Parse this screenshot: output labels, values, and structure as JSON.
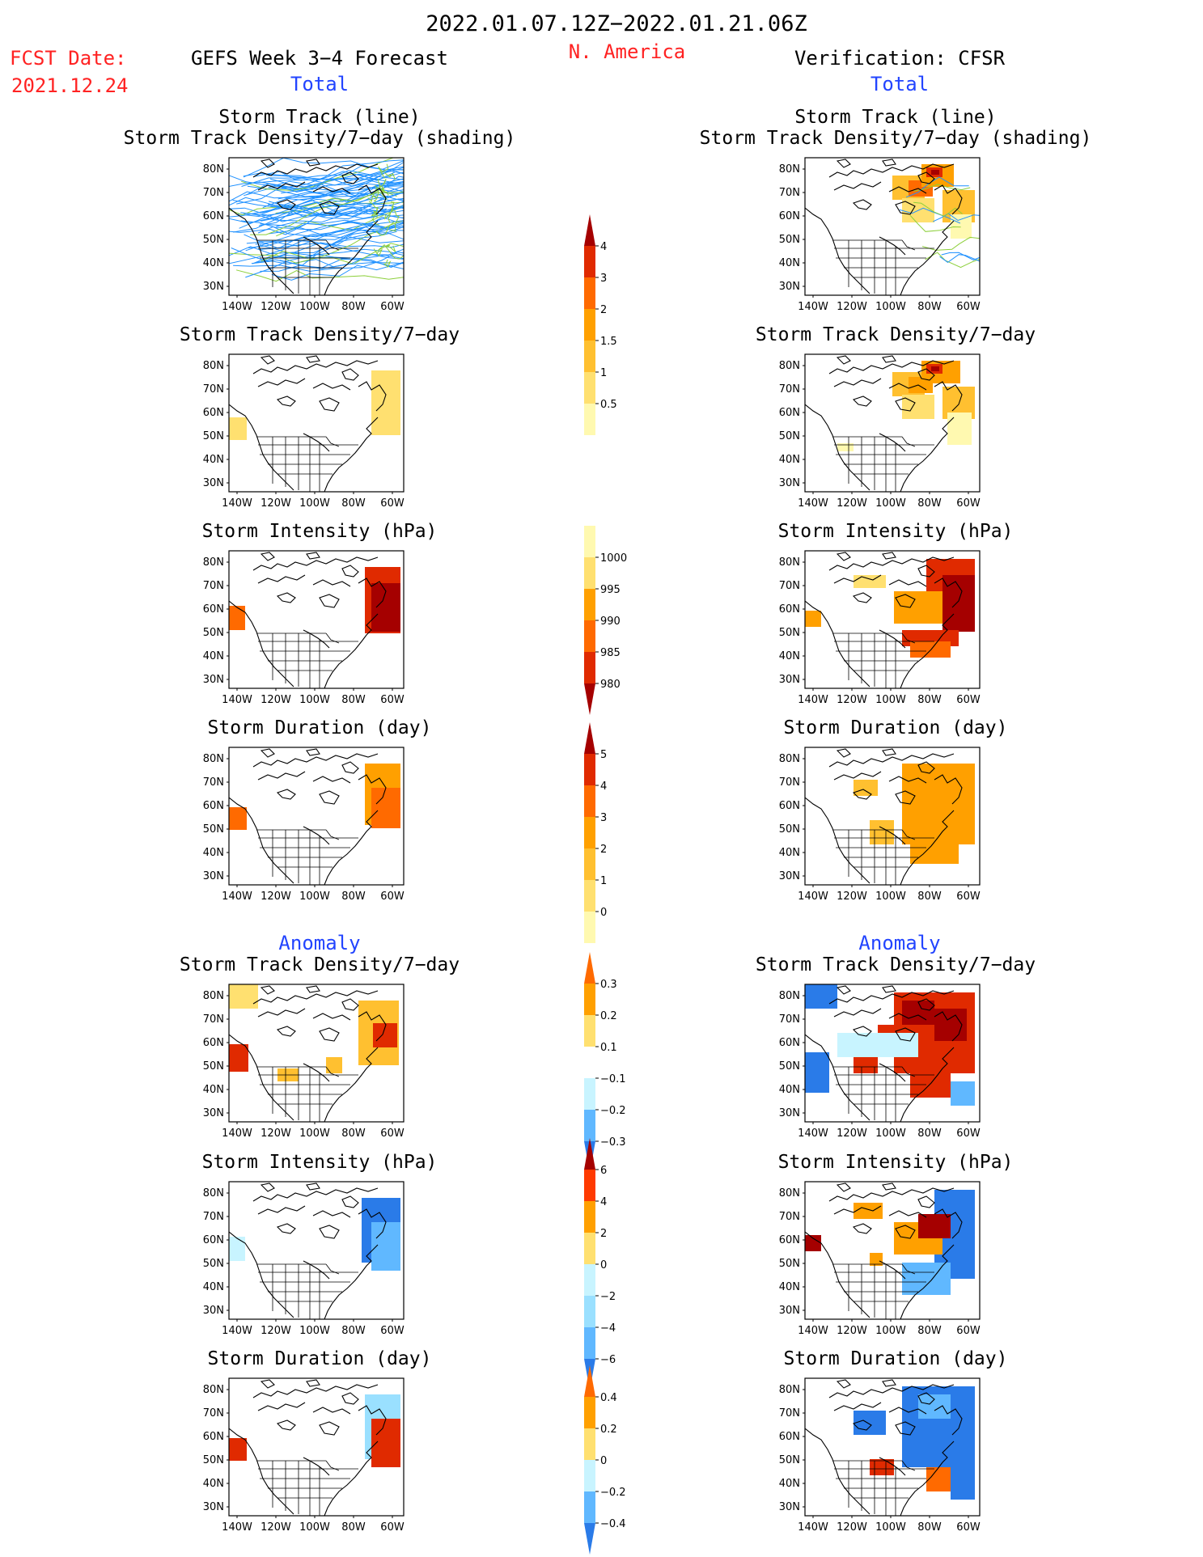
{
  "header": {
    "date_range": "2022.01.07.12Z−2022.01.21.06Z",
    "fcst_label": "FCST Date:",
    "fcst_date": "2021.12.24",
    "left_title": "GEFS Week 3−4 Forecast",
    "region": "N. America",
    "right_title": "Verification: CFSR"
  },
  "sections": {
    "total": "Total",
    "anomaly": "Anomaly"
  },
  "panel_titles": {
    "track_line": "Storm Track (line)",
    "track_shading": "Storm Track Density/7−day (shading)",
    "density": "Storm Track Density/7−day",
    "intensity": "Storm Intensity (hPa)",
    "duration": "Storm Duration (day)"
  },
  "axes": {
    "lat_labels": [
      "80N",
      "70N",
      "60N",
      "50N",
      "40N",
      "30N"
    ],
    "lon_labels": [
      "140W",
      "120W",
      "100W",
      "80W",
      "60W"
    ],
    "lat_range": [
      25,
      85
    ],
    "lon_range": [
      -150,
      -55
    ]
  },
  "colorbars": {
    "density_total": [
      "0.5",
      "1",
      "1.5",
      "2",
      "3",
      "4"
    ],
    "intensity_total": [
      "1000",
      "995",
      "990",
      "985",
      "980"
    ],
    "duration_total": [
      "0",
      "1",
      "2",
      "3",
      "4",
      "5"
    ],
    "density_anom": [
      "0.3",
      "0.2",
      "0.1",
      "−0.1",
      "−0.2",
      "−0.3"
    ],
    "intensity_anom": [
      "6",
      "4",
      "2",
      "0",
      "−2",
      "−4",
      "−6"
    ],
    "duration_anom": [
      "0.4",
      "0.2",
      "0",
      "−0.2",
      "−0.4"
    ]
  },
  "colors": {
    "title_red": "#ff2222",
    "label_blue": "#2244ff",
    "warm_scale": [
      "#fff9b0",
      "#ffe070",
      "#ffc030",
      "#ffa000",
      "#ff6a00",
      "#e02a00",
      "#a50000"
    ],
    "cool_scale": [
      "#c8f4ff",
      "#9ae0ff",
      "#60b8ff",
      "#2a7be8"
    ],
    "track_blue": "#1e90ff",
    "track_green": "#8ccf3a"
  }
}
